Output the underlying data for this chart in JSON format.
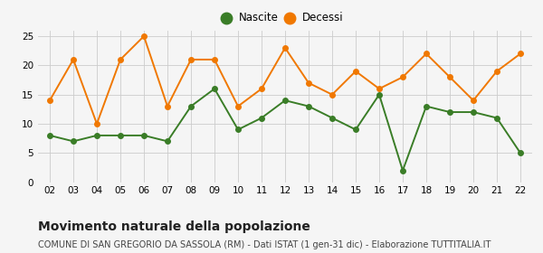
{
  "years": [
    "02",
    "03",
    "04",
    "05",
    "06",
    "07",
    "08",
    "09",
    "10",
    "11",
    "12",
    "13",
    "14",
    "15",
    "16",
    "17",
    "18",
    "19",
    "20",
    "21",
    "22"
  ],
  "nascite": [
    8,
    7,
    8,
    8,
    8,
    7,
    13,
    16,
    9,
    11,
    14,
    13,
    11,
    9,
    15,
    2,
    13,
    12,
    12,
    11,
    5
  ],
  "decessi": [
    14,
    21,
    10,
    21,
    25,
    13,
    21,
    21,
    13,
    16,
    23,
    17,
    15,
    19,
    16,
    18,
    22,
    18,
    14,
    19,
    22
  ],
  "nascite_color": "#3a7d27",
  "decessi_color": "#f07800",
  "background_color": "#f5f5f5",
  "grid_color": "#cccccc",
  "ylim": [
    0,
    26
  ],
  "yticks": [
    0,
    5,
    10,
    15,
    20,
    25
  ],
  "title": "Movimento naturale della popolazione",
  "subtitle": "COMUNE DI SAN GREGORIO DA SASSOLA (RM) - Dati ISTAT (1 gen-31 dic) - Elaborazione TUTTITALIA.IT",
  "legend_nascite": "Nascite",
  "legend_decessi": "Decessi",
  "title_fontsize": 10,
  "subtitle_fontsize": 7,
  "marker_size": 4,
  "line_width": 1.4
}
